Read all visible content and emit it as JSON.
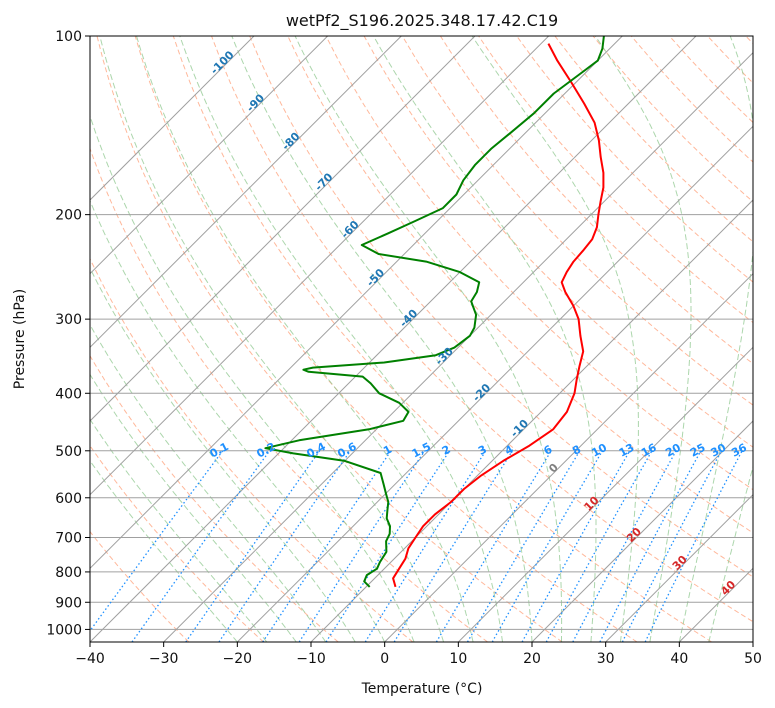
{
  "chart_data": {
    "type": "line",
    "title": "wetPf2_S196.2025.348.17.42.C19",
    "xlabel": "Temperature (°C)",
    "ylabel": "Pressure (hPa)",
    "xlim": [
      -40,
      50
    ],
    "ylim": [
      1050,
      100
    ],
    "y_scale": "log",
    "x_ticks": [
      "−40",
      "−30",
      "−20",
      "−10",
      "0",
      "10",
      "20",
      "30",
      "40",
      "50"
    ],
    "y_ticks": [
      {
        "p": 100,
        "label": "100"
      },
      {
        "p": 200,
        "label": "200"
      },
      {
        "p": 300,
        "label": "300"
      },
      {
        "p": 400,
        "label": "400"
      },
      {
        "p": 500,
        "label": "500"
      },
      {
        "p": 600,
        "label": "600"
      },
      {
        "p": 700,
        "label": "700"
      },
      {
        "p": 800,
        "label": "800"
      },
      {
        "p": 900,
        "label": "900"
      },
      {
        "p": 1000,
        "label": "1000"
      }
    ],
    "grid": true,
    "skew": "isotherms skewed 45°",
    "colors": {
      "temperature": "#ff0000",
      "dewpoint": "#008000",
      "dry_adiabats": "#ffa07a",
      "moist_adiabats": "#90c890",
      "mixing_ratio": "#1e90ff",
      "isotherms": "#a0a0a0"
    },
    "series": [
      {
        "kind": "temperature",
        "points": [
          [
            848,
            -6.0
          ],
          [
            820,
            -7.5
          ],
          [
            790,
            -8.0
          ],
          [
            760,
            -8.5
          ],
          [
            730,
            -9.5
          ],
          [
            700,
            -10.0
          ],
          [
            670,
            -10.5
          ],
          [
            640,
            -10.5
          ],
          [
            610,
            -10.0
          ],
          [
            580,
            -10.0
          ],
          [
            550,
            -9.5
          ],
          [
            520,
            -8.5
          ],
          [
            490,
            -7.0
          ],
          [
            460,
            -6.0
          ],
          [
            430,
            -6.5
          ],
          [
            400,
            -8.0
          ],
          [
            380,
            -9.5
          ],
          [
            360,
            -11.0
          ],
          [
            340,
            -12.5
          ],
          [
            320,
            -15.0
          ],
          [
            300,
            -17.5
          ],
          [
            285,
            -20.0
          ],
          [
            270,
            -23.0
          ],
          [
            260,
            -24.8
          ],
          [
            250,
            -25.5
          ],
          [
            240,
            -26.0
          ],
          [
            230,
            -26.2
          ],
          [
            220,
            -26.5
          ],
          [
            210,
            -27.5
          ],
          [
            200,
            -29.0
          ],
          [
            190,
            -30.5
          ],
          [
            180,
            -32.0
          ],
          [
            170,
            -34.0
          ],
          [
            160,
            -36.5
          ],
          [
            150,
            -39.0
          ],
          [
            140,
            -42.0
          ],
          [
            130,
            -46.0
          ],
          [
            120,
            -50.5
          ],
          [
            110,
            -55.5
          ],
          [
            103,
            -59.0
          ]
        ]
      },
      {
        "kind": "dewpoint",
        "points": [
          [
            848,
            -9.5
          ],
          [
            830,
            -11.0
          ],
          [
            810,
            -11.5
          ],
          [
            790,
            -11.0
          ],
          [
            770,
            -11.5
          ],
          [
            740,
            -12.0
          ],
          [
            710,
            -13.5
          ],
          [
            690,
            -14.0
          ],
          [
            670,
            -15.0
          ],
          [
            650,
            -16.5
          ],
          [
            630,
            -17.5
          ],
          [
            610,
            -18.5
          ],
          [
            590,
            -20.0
          ],
          [
            570,
            -21.5
          ],
          [
            545,
            -23.5
          ],
          [
            520,
            -30.0
          ],
          [
            505,
            -38.0
          ],
          [
            495,
            -42.5
          ],
          [
            480,
            -39.0
          ],
          [
            460,
            -31.0
          ],
          [
            445,
            -27.5
          ],
          [
            430,
            -28.0
          ],
          [
            415,
            -30.5
          ],
          [
            400,
            -34.5
          ],
          [
            385,
            -37.0
          ],
          [
            375,
            -39.0
          ],
          [
            368,
            -47.0
          ],
          [
            365,
            -48.0
          ],
          [
            362,
            -47.0
          ],
          [
            355,
            -38.0
          ],
          [
            345,
            -32.0
          ],
          [
            335,
            -30.5
          ],
          [
            320,
            -30.0
          ],
          [
            310,
            -30.5
          ],
          [
            295,
            -32.0
          ],
          [
            280,
            -34.5
          ],
          [
            270,
            -35.0
          ],
          [
            260,
            -36.0
          ],
          [
            250,
            -40.0
          ],
          [
            240,
            -46.0
          ],
          [
            233,
            -53.5
          ],
          [
            225,
            -57.0
          ],
          [
            215,
            -55.0
          ],
          [
            205,
            -53.0
          ],
          [
            195,
            -51.0
          ],
          [
            185,
            -51.0
          ],
          [
            175,
            -52.0
          ],
          [
            165,
            -52.5
          ],
          [
            155,
            -52.5
          ],
          [
            145,
            -52.0
          ],
          [
            135,
            -51.5
          ],
          [
            125,
            -51.5
          ],
          [
            115,
            -50.5
          ],
          [
            110,
            -50.0
          ],
          [
            105,
            -51.0
          ],
          [
            100,
            -52.5
          ]
        ]
      }
    ],
    "dry_adiabat_labels": [
      "-100",
      "-90",
      "-80",
      "-70",
      "-60",
      "-50",
      "-40",
      "-30",
      "-20",
      "-10"
    ],
    "mixing_ratio_labels": [
      "0.1",
      "0.2",
      "0.4",
      "0.6",
      "1",
      "1.5",
      "2",
      "3",
      "4",
      "6",
      "8",
      "10",
      "13",
      "16",
      "20",
      "25",
      "30",
      "36"
    ],
    "moist_adiabat_labels": [
      "0",
      "10",
      "20",
      "30",
      "40"
    ]
  }
}
